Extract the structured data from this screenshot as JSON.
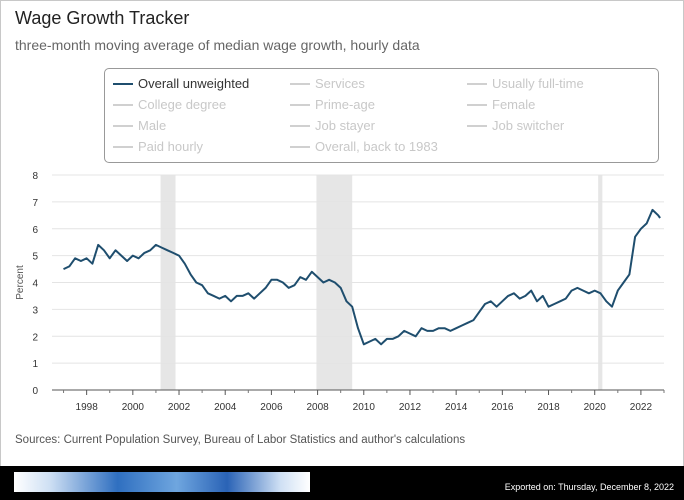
{
  "title": "Wage Growth Tracker",
  "subtitle": "three-month moving average of median wage growth, hourly data",
  "legend": [
    {
      "label": "Overall unweighted",
      "active": true
    },
    {
      "label": "Services",
      "active": false
    },
    {
      "label": "Usually full-time",
      "active": false
    },
    {
      "label": "College degree",
      "active": false
    },
    {
      "label": "Prime-age",
      "active": false
    },
    {
      "label": "Female",
      "active": false
    },
    {
      "label": "Male",
      "active": false
    },
    {
      "label": "Job stayer",
      "active": false
    },
    {
      "label": "Job switcher",
      "active": false
    },
    {
      "label": "Paid hourly",
      "active": false
    },
    {
      "label": "Overall, back to 1983",
      "active": false
    }
  ],
  "source": "Sources: Current Population Survey, Bureau of Labor Statistics and author's calculations",
  "export_text": "Exported on: Thursday, December 8, 2022",
  "colors": {
    "series": "#1f4e6e",
    "recession": "#e6e6e6",
    "grid": "#e4e4e4"
  },
  "chart_data": {
    "type": "line",
    "title": "Wage Growth Tracker",
    "ylabel": "Percent",
    "xlabel": "",
    "xlim": [
      1996.5,
      2023.0
    ],
    "ylim": [
      0,
      8
    ],
    "yticks": [
      0,
      1,
      2,
      3,
      4,
      5,
      6,
      7,
      8
    ],
    "xticks": [
      1998,
      2000,
      2002,
      2004,
      2006,
      2008,
      2010,
      2012,
      2014,
      2016,
      2018,
      2020,
      2022
    ],
    "grid": true,
    "recessions": [
      [
        2001.2,
        2001.85
      ],
      [
        2007.95,
        2009.5
      ],
      [
        2020.15,
        2020.33
      ]
    ],
    "series": [
      {
        "name": "Overall unweighted",
        "color": "#1f4e6e",
        "x": [
          1997.0,
          1997.25,
          1997.5,
          1997.75,
          1998.0,
          1998.25,
          1998.5,
          1998.75,
          1999.0,
          1999.25,
          1999.5,
          1999.75,
          2000.0,
          2000.25,
          2000.5,
          2000.75,
          2001.0,
          2001.25,
          2001.5,
          2001.75,
          2002.0,
          2002.25,
          2002.5,
          2002.75,
          2003.0,
          2003.25,
          2003.5,
          2003.75,
          2004.0,
          2004.25,
          2004.5,
          2004.75,
          2005.0,
          2005.25,
          2005.5,
          2005.75,
          2006.0,
          2006.25,
          2006.5,
          2006.75,
          2007.0,
          2007.25,
          2007.5,
          2007.75,
          2008.0,
          2008.25,
          2008.5,
          2008.75,
          2009.0,
          2009.25,
          2009.5,
          2009.75,
          2010.0,
          2010.25,
          2010.5,
          2010.75,
          2011.0,
          2011.25,
          2011.5,
          2011.75,
          2012.0,
          2012.25,
          2012.5,
          2012.75,
          2013.0,
          2013.25,
          2013.5,
          2013.75,
          2014.0,
          2014.25,
          2014.5,
          2014.75,
          2015.0,
          2015.25,
          2015.5,
          2015.75,
          2016.0,
          2016.25,
          2016.5,
          2016.75,
          2017.0,
          2017.25,
          2017.5,
          2017.75,
          2018.0,
          2018.25,
          2018.5,
          2018.75,
          2019.0,
          2019.25,
          2019.5,
          2019.75,
          2020.0,
          2020.25,
          2020.5,
          2020.75,
          2021.0,
          2021.25,
          2021.5,
          2021.75,
          2022.0,
          2022.25,
          2022.5,
          2022.75,
          2022.83
        ],
        "values": [
          4.5,
          4.6,
          4.9,
          4.8,
          4.9,
          4.7,
          5.4,
          5.2,
          4.9,
          5.2,
          5.0,
          4.8,
          5.0,
          4.9,
          5.1,
          5.2,
          5.4,
          5.3,
          5.2,
          5.1,
          5.0,
          4.7,
          4.3,
          4.0,
          3.9,
          3.6,
          3.5,
          3.4,
          3.5,
          3.3,
          3.5,
          3.5,
          3.6,
          3.4,
          3.6,
          3.8,
          4.1,
          4.1,
          4.0,
          3.8,
          3.9,
          4.2,
          4.1,
          4.4,
          4.2,
          4.0,
          4.1,
          4.0,
          3.8,
          3.3,
          3.1,
          2.3,
          1.7,
          1.8,
          1.9,
          1.7,
          1.9,
          1.9,
          2.0,
          2.2,
          2.1,
          2.0,
          2.3,
          2.2,
          2.2,
          2.3,
          2.3,
          2.2,
          2.3,
          2.4,
          2.5,
          2.6,
          2.9,
          3.2,
          3.3,
          3.1,
          3.3,
          3.5,
          3.6,
          3.4,
          3.5,
          3.7,
          3.3,
          3.5,
          3.1,
          3.2,
          3.3,
          3.4,
          3.7,
          3.8,
          3.7,
          3.6,
          3.7,
          3.6,
          3.3,
          3.1,
          3.7,
          4.0,
          4.3,
          5.7,
          6.0,
          6.2,
          6.7,
          6.5,
          6.4
        ]
      }
    ]
  }
}
